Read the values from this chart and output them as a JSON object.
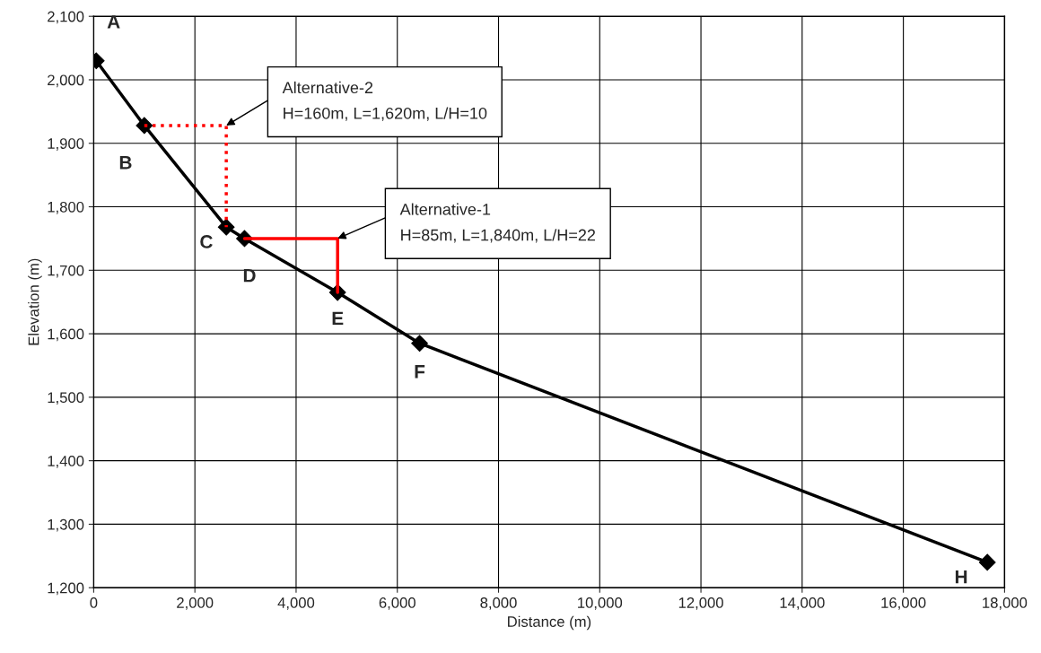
{
  "chart_data": {
    "type": "line",
    "xlabel": "Distance (m)",
    "ylabel": "Elevation (m)",
    "xlim": [
      0,
      18000
    ],
    "ylim": [
      1200,
      2100
    ],
    "xticks": [
      0,
      {
        "value": 2000,
        "label": "2,000"
      },
      {
        "value": 4000,
        "label": "4,000"
      },
      {
        "value": 6000,
        "label": "6,000"
      },
      {
        "value": 8000,
        "label": "8,000"
      },
      {
        "value": 10000,
        "label": "10,000"
      },
      {
        "value": 12000,
        "label": "12,000"
      },
      {
        "value": 14000,
        "label": "14,000"
      },
      {
        "value": 16000,
        "label": "16,000"
      },
      {
        "value": 18000,
        "label": "18,000"
      }
    ],
    "yticks": [
      {
        "value": 1200,
        "label": "1,200"
      },
      {
        "value": 1300,
        "label": "1,300"
      },
      {
        "value": 1400,
        "label": "1,400"
      },
      {
        "value": 1500,
        "label": "1,500"
      },
      {
        "value": 1600,
        "label": "1,600"
      },
      {
        "value": 1700,
        "label": "1,700"
      },
      {
        "value": 1800,
        "label": "1,800"
      },
      {
        "value": 1900,
        "label": "1,900"
      },
      {
        "value": 2000,
        "label": "2,000"
      },
      {
        "value": 2100,
        "label": "2,100"
      }
    ],
    "grid": true,
    "legend": false,
    "series": [
      {
        "color": "#000000",
        "marker": "diamond",
        "line_style": "solid",
        "x": [
          50,
          1000,
          2620,
          2980,
          4820,
          6440,
          17660
        ],
        "values": [
          2030,
          1928,
          1768,
          1750,
          1665,
          1585,
          1240
        ]
      },
      {
        "color": "#ff0000",
        "marker": "none",
        "line_style": "dotted",
        "x": [
          1000,
          2620,
          2620
        ],
        "values": [
          1928,
          1928,
          1768
        ]
      },
      {
        "color": "#ff0000",
        "marker": "none",
        "line_style": "solid",
        "x": [
          2980,
          4820,
          4820
        ],
        "values": [
          1750,
          1750,
          1665
        ]
      }
    ],
    "annotations": [
      {
        "text": "A",
        "x": 50,
        "y": 2030
      },
      {
        "text": "B",
        "x": 1000,
        "y": 1928
      },
      {
        "text": "C",
        "x": 2620,
        "y": 1768
      },
      {
        "text": "D",
        "x": 2980,
        "y": 1750
      },
      {
        "text": "E",
        "x": 4820,
        "y": 1665
      },
      {
        "text": "F",
        "x": 6440,
        "y": 1585
      },
      {
        "text": "H",
        "x": 17660,
        "y": 1240
      },
      {
        "text": "Alternative-2\nH=160m, L=1,620m, L/H=10",
        "x": 2620,
        "y": 1928
      },
      {
        "text": "Alternative-1\nH=85m, L=1,840m, L/H=22",
        "x": 4820,
        "y": 1750
      }
    ]
  }
}
